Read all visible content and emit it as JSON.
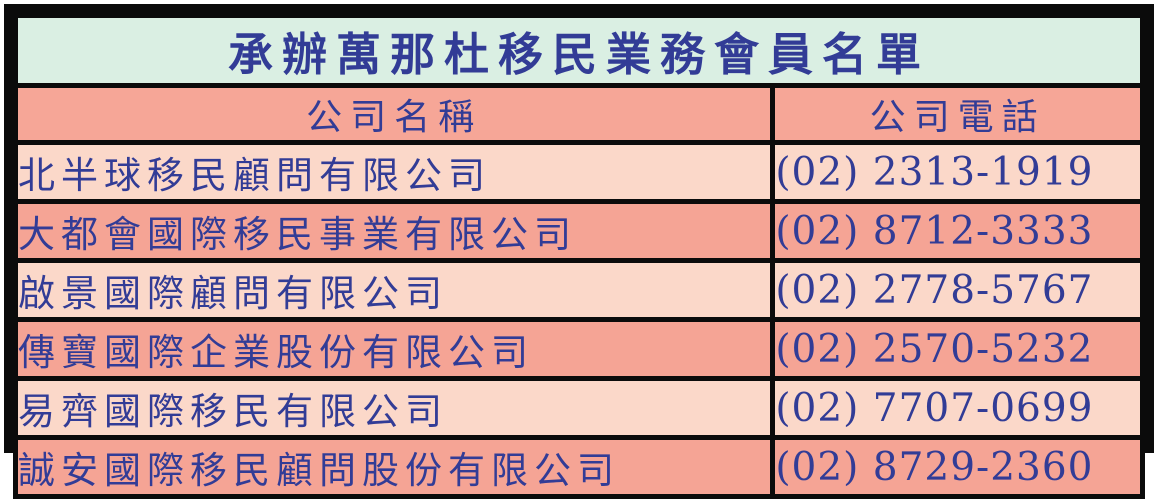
{
  "table": {
    "title": "承辦萬那杜移民業務會員名單",
    "columns": {
      "name_header": "公司名稱",
      "phone_header": "公司電話"
    },
    "rows": [
      {
        "name": "北半球移民顧問有限公司",
        "phone": "(02) 2313-1919"
      },
      {
        "name": "大都會國際移民事業有限公司",
        "phone": "(02) 8712-3333"
      },
      {
        "name": "啟景國際顧問有限公司",
        "phone": "(02) 2778-5767"
      },
      {
        "name": "傳寶國際企業股份有限公司",
        "phone": "(02) 2570-5232"
      },
      {
        "name": "易齊國際移民有限公司",
        "phone": "(02) 7707-0699"
      },
      {
        "name": "誠安國際移民顧問股份有限公司",
        "phone": "(02) 8729-2360"
      }
    ],
    "colors": {
      "title_bg": "#daefe3",
      "header_bg": "#f6a697",
      "row_dark_bg": "#f5a495",
      "row_light_bg": "#fbd8c9",
      "text": "#323c96",
      "border": "#0b0b0b"
    }
  }
}
